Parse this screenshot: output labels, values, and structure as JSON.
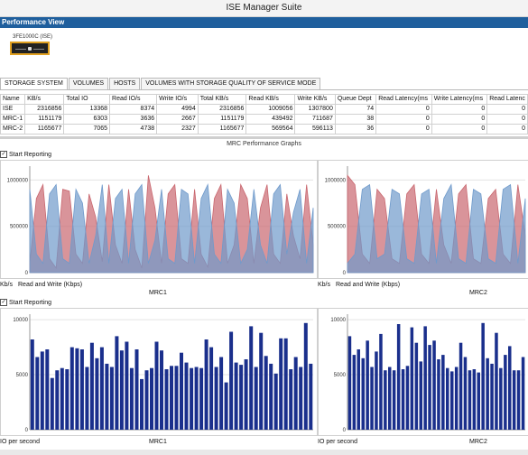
{
  "window": {
    "title": "ISE Manager Suite"
  },
  "header": {
    "section": "Performance View"
  },
  "device": {
    "label": "3FE1000C (ISE)"
  },
  "tabs": [
    {
      "label": "STORAGE SYSTEM",
      "active": true
    },
    {
      "label": "VOLUMES",
      "active": false
    },
    {
      "label": "HOSTS",
      "active": false
    },
    {
      "label": "VOLUMES WITH STORAGE QUALITY OF SERVICE MODE",
      "active": false
    }
  ],
  "table": {
    "columns": [
      "Name",
      "KB/s",
      "Total IO",
      "Read IO/s",
      "Write IO/s",
      "Total KB/s",
      "Read KB/s",
      "Write KB/s",
      "Queue Dept",
      "Read Latency(ms",
      "Write Latency(ms",
      "Read Latenc"
    ],
    "rows": [
      [
        "ISE",
        "2316856",
        "13368",
        "8374",
        "4994",
        "2316856",
        "1009056",
        "1307800",
        "74",
        "0",
        "0",
        "0"
      ],
      [
        "MRC-1",
        "1151179",
        "6303",
        "3636",
        "2667",
        "1151179",
        "439492",
        "711687",
        "38",
        "0",
        "0",
        "0"
      ],
      [
        "MRC-2",
        "1165677",
        "7065",
        "4738",
        "2327",
        "1165677",
        "569564",
        "596113",
        "36",
        "0",
        "0",
        "0"
      ]
    ]
  },
  "graphs": {
    "section_title": "MRC Performance Graphs",
    "start_reporting_1": "Start Reporting",
    "start_reporting_2": "Start Reporting",
    "colors": {
      "read": "#c9676f",
      "write": "#6f9acb",
      "bar": "#1a2f8c"
    }
  },
  "chart_data": [
    {
      "type": "area",
      "name": "MRC1",
      "ylabel": "Kb/s",
      "xlabel": "Read and Write (Kbps)",
      "ylim": [
        0,
        1150000
      ],
      "yticks": [
        0,
        500000,
        1000000
      ],
      "ytick_labels": [
        "0",
        "500000",
        "1000000"
      ],
      "series": [
        {
          "values": [
            100000,
            800000,
            950000,
            150000,
            50000,
            900000,
            880000,
            200000,
            100000,
            850000,
            600000,
            120000,
            950000,
            300000,
            100000,
            900000,
            250000,
            50000,
            1050000,
            700000,
            100000,
            850000,
            950000,
            150000,
            100000,
            900000,
            200000,
            60000,
            800000,
            950000,
            100000,
            300000,
            950000,
            800000,
            100000,
            700000,
            950000,
            200000,
            100000,
            850000,
            400000,
            150000,
            950000,
            300000
          ]
        },
        {
          "values": [
            900000,
            200000,
            100000,
            850000,
            950000,
            150000,
            100000,
            900000,
            750000,
            100000,
            400000,
            950000,
            100000,
            800000,
            900000,
            100000,
            850000,
            950000,
            100000,
            350000,
            900000,
            150000,
            100000,
            900000,
            850000,
            100000,
            800000,
            950000,
            200000,
            100000,
            900000,
            750000,
            100000,
            250000,
            900000,
            300000,
            100000,
            850000,
            950000,
            200000,
            650000,
            900000,
            100000,
            700000
          ]
        }
      ]
    },
    {
      "type": "area",
      "name": "MRC2",
      "ylabel": "Kb/s",
      "xlabel": "",
      "ylim": [
        0,
        1150000
      ],
      "yticks": [
        0,
        500000,
        1000000
      ],
      "ytick_labels": [
        "0",
        "500000",
        "1000000"
      ],
      "series": [
        {
          "values": [
            1050000,
            950000,
            200000,
            100000,
            900000,
            800000,
            150000,
            100000,
            850000,
            950000,
            200000,
            100000,
            900000,
            300000,
            100000,
            850000,
            950000,
            150000,
            100000,
            800000,
            900000,
            200000,
            100000,
            950000,
            400000
          ]
        },
        {
          "values": [
            100000,
            200000,
            900000,
            950000,
            150000,
            200000,
            900000,
            850000,
            150000,
            100000,
            850000,
            900000,
            100000,
            800000,
            950000,
            150000,
            100000,
            900000,
            850000,
            150000,
            100000,
            900000,
            950000,
            100000,
            800000
          ]
        }
      ]
    },
    {
      "type": "bar",
      "name": "MRC1",
      "ylabel": "IO per second",
      "ylim": [
        0,
        10500
      ],
      "yticks": [
        0,
        5000,
        10000
      ],
      "ytick_labels": [
        "0",
        "5000",
        "10000"
      ],
      "values": [
        8200,
        6600,
        7100,
        7300,
        4700,
        5400,
        5600,
        5500,
        7500,
        7400,
        7300,
        5700,
        7900,
        6500,
        7500,
        6000,
        5700,
        8500,
        7200,
        8000,
        5600,
        7300,
        4600,
        5400,
        5600,
        8000,
        7200,
        5500,
        5800,
        5800,
        7000,
        6100,
        5600,
        5700,
        5600,
        8200,
        7500,
        5700,
        6600,
        4300,
        8900,
        6100,
        5900,
        6400,
        9400,
        5700,
        8800,
        6700,
        6000,
        5100,
        8300,
        8300,
        5500,
        6600,
        5700,
        9700,
        6000
      ]
    },
    {
      "type": "bar",
      "name": "MRC2",
      "ylabel": "IO per second",
      "ylim": [
        0,
        10500
      ],
      "yticks": [
        0,
        5000,
        10000
      ],
      "ytick_labels": [
        "0",
        "5000",
        "10000"
      ],
      "values": [
        8500,
        6800,
        7300,
        6500,
        8100,
        5700,
        7100,
        8700,
        5400,
        5700,
        5400,
        9600,
        5500,
        5800,
        9300,
        7900,
        6200,
        9400,
        7700,
        8100,
        6400,
        6800,
        5600,
        5300,
        5700,
        7900,
        6600,
        5400,
        5500,
        5200,
        9700,
        6500,
        6000,
        8800,
        5600,
        6800,
        7600,
        5400,
        5400,
        6600
      ]
    }
  ],
  "captions": {
    "chart1_title": "MRC1",
    "chart2_title": "MRC2",
    "chart3_title": "MRC1",
    "chart4_title": "MRC2",
    "y_units_top": "Kb/s",
    "y_units_top2": "Kb/s",
    "legend_top": "Read and Write (Kbps)",
    "legend_top2": "Read and Write (Kbps)",
    "y_units_bottom": "IO per second",
    "y_units_bottom2": "IO per second"
  }
}
